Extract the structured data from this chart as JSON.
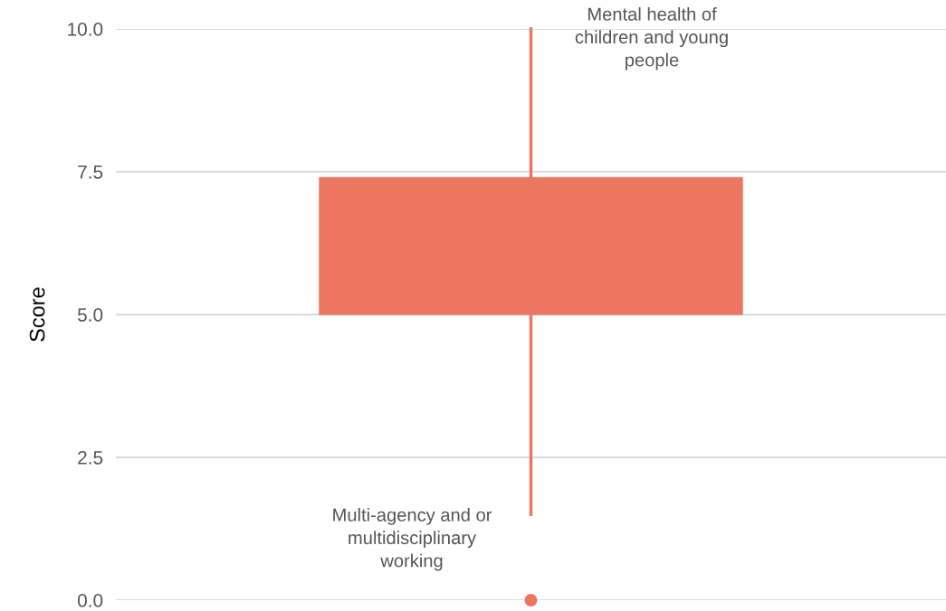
{
  "chart_data": {
    "type": "box",
    "ylabel": "Score",
    "categories": [
      null
    ],
    "boxes": [
      {
        "low": 1.5,
        "q1": 5.0,
        "median": 5.0,
        "q3": 7.4,
        "high": 10.0,
        "outliers": [
          0.0
        ]
      }
    ],
    "color": "#ed7661",
    "ylim": [
      0,
      10
    ],
    "yticks": [
      {
        "value": 0,
        "label": "0.0"
      },
      {
        "value": 2.5,
        "label": "2.5"
      },
      {
        "value": 5,
        "label": "5.0"
      },
      {
        "value": 7.5,
        "label": "7.5"
      },
      {
        "value": 10,
        "label": "10.0"
      }
    ],
    "grid": "y",
    "tick_labels": "y",
    "annotations": [
      "Mental health of\nchildren and young\npeople",
      "Multi-agency and or\nmultidisciplinary\nworking"
    ]
  }
}
